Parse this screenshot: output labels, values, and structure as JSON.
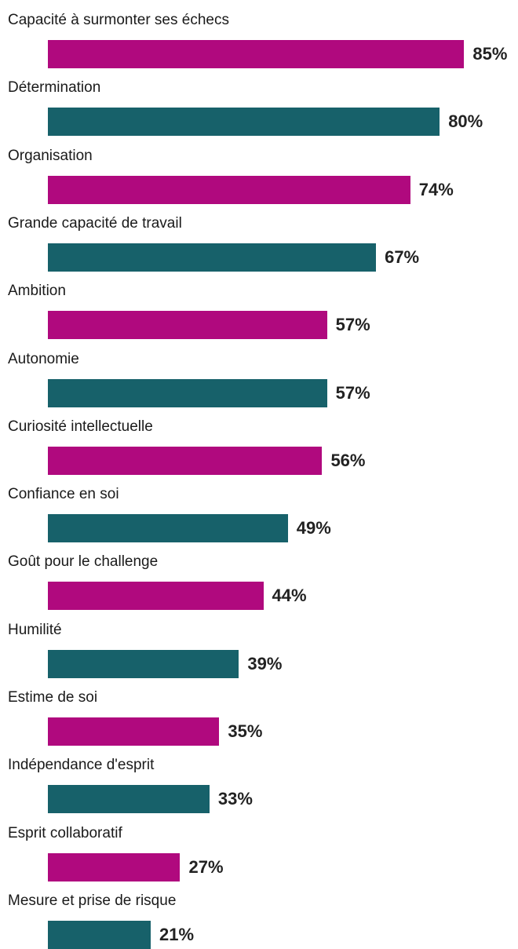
{
  "chart_data": {
    "type": "bar",
    "orientation": "horizontal",
    "categories": [
      "Capacité à surmonter ses échecs",
      "Détermination",
      "Organisation",
      "Grande capacité de travail",
      "Ambition",
      "Autonomie",
      "Curiosité intellectuelle",
      "Confiance en soi",
      "Goût pour le challenge",
      "Humilité",
      "Estime de soi",
      "Indépendance d'esprit",
      "Esprit collaboratif",
      "Mesure et prise de risque"
    ],
    "values": [
      85,
      80,
      74,
      67,
      57,
      57,
      56,
      49,
      44,
      39,
      35,
      33,
      27,
      21
    ],
    "value_labels": [
      "85%",
      "80%",
      "74%",
      "67%",
      "57%",
      "57%",
      "56%",
      "49%",
      "44%",
      "39%",
      "35%",
      "33%",
      "27%",
      "21%"
    ],
    "unit": "%",
    "xlim": [
      0,
      100
    ],
    "colors": [
      "#b0097e",
      "#17616a"
    ],
    "color_pattern": "alternating",
    "grid": false,
    "legend": "none"
  }
}
